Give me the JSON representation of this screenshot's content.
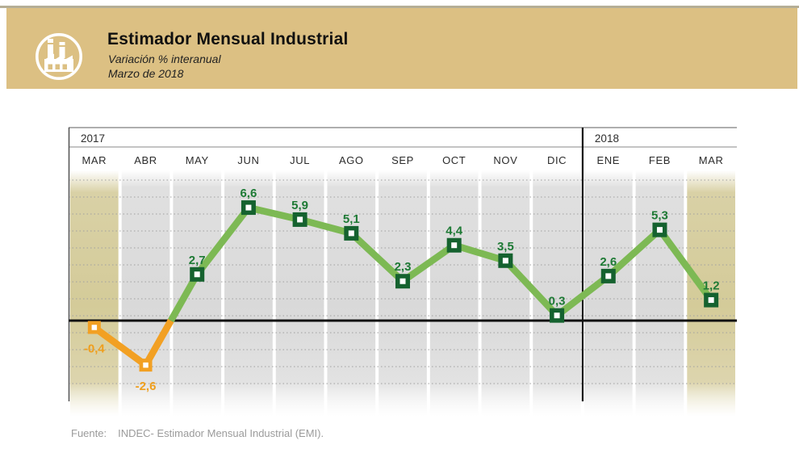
{
  "header": {
    "title": "Estimador Mensual Industrial",
    "subtitle": "Variación % interanual",
    "period": "Marzo de 2018",
    "icon": "factory-icon",
    "band_color": "#dcc083"
  },
  "chart_data": {
    "type": "line",
    "title": "Estimador Mensual Industrial",
    "subtitle": "Variación % interanual",
    "unit": "%",
    "years": [
      {
        "label": "2017",
        "months": [
          "MAR",
          "ABR",
          "MAY",
          "JUN",
          "JUL",
          "AGO",
          "SEP",
          "OCT",
          "NOV",
          "DIC"
        ]
      },
      {
        "label": "2018",
        "months": [
          "ENE",
          "FEB",
          "MAR"
        ]
      }
    ],
    "categories": [
      "MAR 2017",
      "ABR 2017",
      "MAY 2017",
      "JUN 2017",
      "JUL 2017",
      "AGO 2017",
      "SEP 2017",
      "OCT 2017",
      "NOV 2017",
      "DIC 2017",
      "ENE 2018",
      "FEB 2018",
      "MAR 2018"
    ],
    "values": [
      -0.4,
      -2.6,
      2.7,
      6.6,
      5.9,
      5.1,
      2.3,
      4.4,
      3.5,
      0.3,
      2.6,
      5.3,
      1.2
    ],
    "value_labels": [
      "-0,4",
      "-2,6",
      "2,7",
      "6,6",
      "5,9",
      "5,1",
      "2,3",
      "4,4",
      "3,5",
      "0,3",
      "2,6",
      "5,3",
      "1,2"
    ],
    "ylim": [
      -4.6,
      8.8
    ],
    "zero_line": true,
    "grid": "horizontal-dotted",
    "highlight_columns": [
      0,
      12
    ],
    "colors": {
      "positive_line": "#7db954",
      "negative_line": "#f2a023",
      "positive_marker_border": "#15622f",
      "negative_marker_border": "#f2a023",
      "marker_fill": "#ffffff",
      "positive_label": "#1e7a35",
      "negative_label": "#ef9e1c",
      "stripe_gray": "#dadada",
      "stripe_beige": "#d6cd9d",
      "zero_line_color": "#111111",
      "separator_color": "#111111"
    }
  },
  "footer": {
    "source_label": "Fuente:",
    "source_text": "INDEC- Estimador Mensual Industrial (EMI)."
  }
}
